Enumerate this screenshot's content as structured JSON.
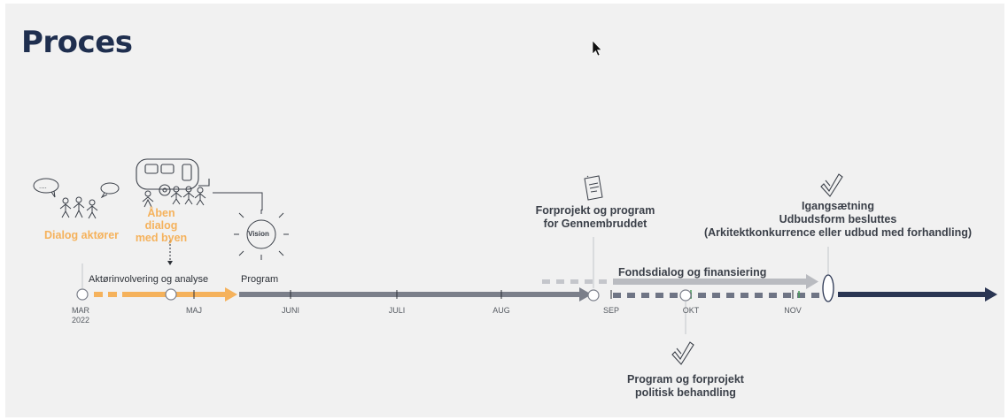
{
  "title": "Proces",
  "labels": {
    "dialog_aktorer": "Dialog aktører",
    "aaben_dialog_1": "Åben dialog",
    "aaben_dialog_2": "med byen",
    "vision": "Vision",
    "aktoerinvolvering": "Aktørinvolvering og analyse",
    "program": "Program",
    "forprojekt_1": "Forprojekt og program",
    "forprojekt_2": "for Gennembruddet",
    "fondsdialog": "Fondsdialog og finansiering",
    "igang_1": "Igangsætning",
    "igang_2": "Udbudsform besluttes",
    "igang_3": "(Arkitektkonkurrence eller udbud med forhandling)",
    "politisk_1": "Program og forprojekt",
    "politisk_2": "politisk behandling"
  },
  "months": {
    "mar": "MAR",
    "year": "2022",
    "maj": "MAJ",
    "juni": "JUNI",
    "juli": "JULI",
    "aug": "AUG",
    "sep": "SEP",
    "okt": "OKT",
    "nov": "NOV"
  },
  "colors": {
    "title": "#1f2f4f",
    "orange": "#f5b25c",
    "grey_line": "#7b7f8a",
    "light_grey": "#c4c6cb",
    "navy": "#2a3552"
  },
  "icons": [
    "speech-bubble-icon",
    "people-icon",
    "caravan-icon",
    "sun-icon",
    "document-icon",
    "checkmark-icon",
    "cursor-icon"
  ]
}
